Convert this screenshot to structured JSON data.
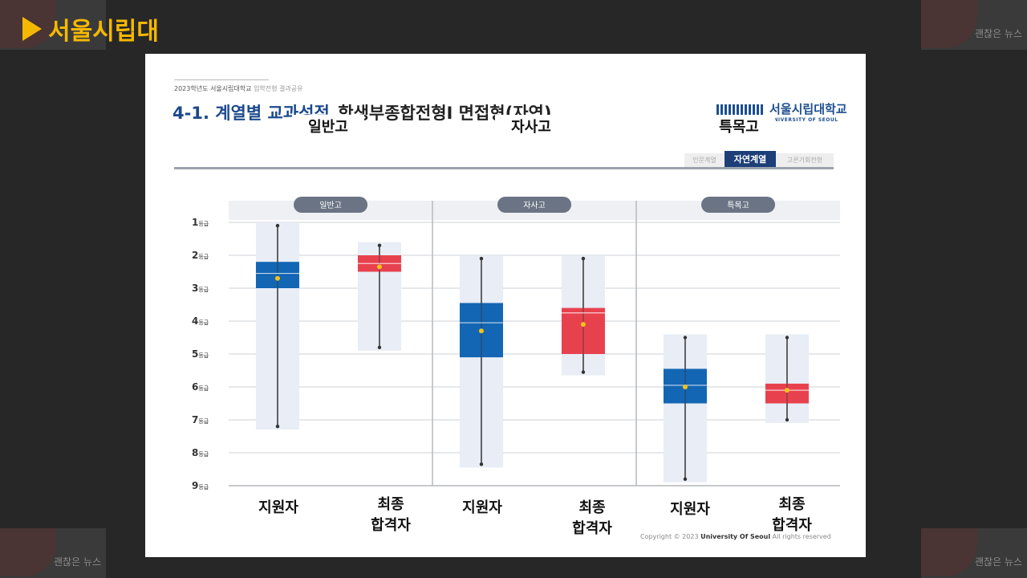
{
  "header": {
    "title": "서울시립대"
  },
  "watermark": {
    "text": "괜찮은 뉴스"
  },
  "slide": {
    "subtitle_main": "2023학년도 서울시립대학교",
    "subtitle_muted": "입학전형 결과공유",
    "title_blue": "4-1. 계열별 교과성적_",
    "title_rest": "학생부종합전형I 면접형(자연)",
    "logo_ko": "서울시립대학교",
    "logo_en": "UNIVERSITY OF SEOUL",
    "tabs": [
      {
        "label": "인문계열",
        "active": false
      },
      {
        "label": "자연계열",
        "active": true
      },
      {
        "label": "고른기회전형",
        "active": false
      }
    ],
    "copyright_prefix": "Copyright © 2023 ",
    "copyright_bold": "University Of Seoul",
    "copyright_suffix": " All rights reserved"
  },
  "chart_data": {
    "type": "box",
    "y_unit_suffix": "등급",
    "y_ticks": [
      "1등급",
      "2등급",
      "3등급",
      "4등급",
      "5등급",
      "6등급",
      "7등급",
      "8등급",
      "9등급"
    ],
    "ylim": [
      1,
      9
    ],
    "y_inverted": true,
    "grid": true,
    "series_colors": {
      "applicants": "#1366b3",
      "admitted": "#e8414e"
    },
    "groups": [
      {
        "name": "일반고",
        "header_label": "일반고",
        "boxes": [
          {
            "label": "지원자",
            "series": "applicants",
            "min": 1.1,
            "q1": 2.2,
            "median": 2.55,
            "q3": 3.0,
            "max": 7.2,
            "mean": 2.7
          },
          {
            "label": "최종\n합격자",
            "series": "admitted",
            "min": 1.7,
            "q1": 2.0,
            "median": 2.25,
            "q3": 2.5,
            "max": 4.8,
            "mean": 2.35
          }
        ]
      },
      {
        "name": "자사고",
        "header_label": "자사고",
        "boxes": [
          {
            "label": "지원자",
            "series": "applicants",
            "min": 2.1,
            "q1": 3.45,
            "median": 4.05,
            "q3": 5.1,
            "max": 8.35,
            "mean": 4.3
          },
          {
            "label": "최종\n합격자",
            "series": "admitted",
            "min": 2.1,
            "q1": 3.6,
            "median": 3.75,
            "q3": 5.0,
            "max": 5.55,
            "mean": 4.1
          }
        ]
      },
      {
        "name": "특목고",
        "header_label": "특목고",
        "boxes": [
          {
            "label": "지원자",
            "series": "applicants",
            "min": 4.5,
            "q1": 5.45,
            "median": 5.95,
            "q3": 6.5,
            "max": 8.8,
            "mean": 6.0
          },
          {
            "label": "최종\n합격자",
            "series": "admitted",
            "min": 4.5,
            "q1": 5.9,
            "median": 6.1,
            "q3": 6.5,
            "max": 7.0,
            "mean": 6.1
          }
        ]
      }
    ]
  }
}
